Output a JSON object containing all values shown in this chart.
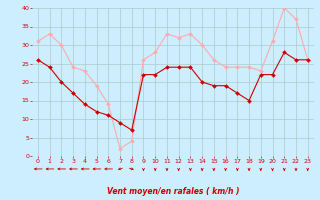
{
  "x": [
    0,
    1,
    2,
    3,
    4,
    5,
    6,
    7,
    8,
    9,
    10,
    11,
    12,
    13,
    14,
    15,
    16,
    17,
    18,
    19,
    20,
    21,
    22,
    23
  ],
  "wind_avg": [
    26,
    24,
    20,
    17,
    14,
    12,
    11,
    9,
    7,
    22,
    22,
    24,
    24,
    24,
    20,
    19,
    19,
    17,
    15,
    22,
    22,
    28,
    26,
    26
  ],
  "wind_gust": [
    31,
    33,
    30,
    24,
    23,
    19,
    14,
    2,
    4,
    26,
    28,
    33,
    32,
    33,
    30,
    26,
    24,
    24,
    24,
    23,
    31,
    40,
    37,
    26
  ],
  "bg_color": "#cceeff",
  "grid_color": "#aacccc",
  "line_avg_color": "#cc0000",
  "line_gust_color": "#ffaaaa",
  "xlabel": "Vent moyen/en rafales ( km/h )",
  "xlabel_color": "#cc0000",
  "tick_color": "#cc0000",
  "ylim": [
    0,
    40
  ],
  "yticks": [
    0,
    5,
    10,
    15,
    20,
    25,
    30,
    35,
    40
  ],
  "xticks": [
    0,
    1,
    2,
    3,
    4,
    5,
    6,
    7,
    8,
    9,
    10,
    11,
    12,
    13,
    14,
    15,
    16,
    17,
    18,
    19,
    20,
    21,
    22,
    23
  ],
  "arrow_color": "#cc0000",
  "arrow_angles": [
    180,
    180,
    180,
    180,
    180,
    180,
    180,
    225,
    315,
    270,
    270,
    270,
    270,
    270,
    270,
    270,
    270,
    270,
    270,
    270,
    270,
    270,
    270,
    270
  ]
}
